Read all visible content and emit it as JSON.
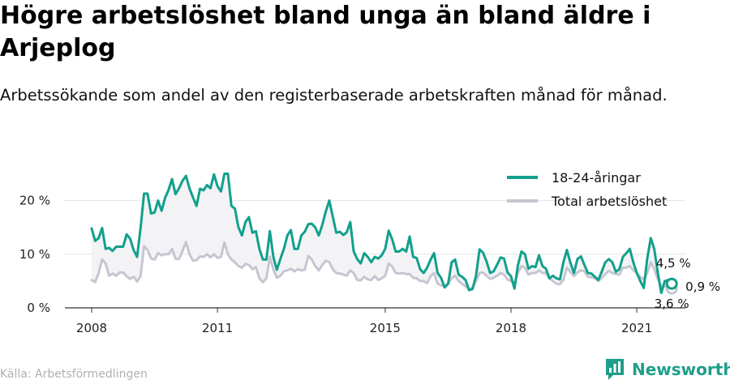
{
  "header": {
    "title": "Högre arbetslöshet bland unga än bland äldre i Arjeplog",
    "subtitle": "Arbetssökande som andel av den registerbaserade arbetskraften månad för månad."
  },
  "footer": {
    "source": "Källa: Arbetsförmedlingen",
    "brand": "Newsworthy",
    "brand_icon": "bar-chart-logo-icon"
  },
  "colors": {
    "youth": "#12a08c",
    "total": "#c6c6d2",
    "grid": "#e3e3e3",
    "fill": "#f3f3f6"
  },
  "chart_data": {
    "type": "line",
    "x_ticks": [
      {
        "year": 2008,
        "label": "2008"
      },
      {
        "year": 2011,
        "label": "2011"
      },
      {
        "year": 2015,
        "label": "2015"
      },
      {
        "year": 2018,
        "label": "2018"
      },
      {
        "year": 2021,
        "label": "2021"
      }
    ],
    "y_ticks": [
      {
        "value": 0,
        "label": "0 %"
      },
      {
        "value": 10,
        "label": "10 %"
      },
      {
        "value": 20,
        "label": "20 %"
      }
    ],
    "ylim": [
      0,
      25
    ],
    "xlim": [
      2008,
      2022
    ],
    "grid": true,
    "legend_position": "top-right",
    "series": [
      {
        "name": "18-24-åringar",
        "color": "#12a08c",
        "start": "2008-01",
        "values": [
          14.8,
          12.5,
          13.0,
          14.9,
          11.0,
          11.2,
          10.6,
          11.4,
          11.4,
          11.4,
          13.7,
          12.9,
          10.8,
          9.5,
          14.9,
          21.3,
          21.3,
          17.6,
          17.8,
          20.0,
          18.1,
          20.5,
          22.0,
          24.0,
          21.2,
          22.3,
          23.7,
          24.6,
          22.3,
          20.6,
          19.0,
          22.2,
          21.9,
          22.9,
          22.3,
          24.9,
          22.7,
          21.7,
          25.0,
          25.0,
          19.0,
          18.5,
          15.0,
          13.5,
          16.0,
          16.9,
          14.0,
          14.3,
          11.0,
          9.0,
          9.0,
          14.3,
          9.5,
          7.1,
          9.1,
          11.0,
          13.5,
          14.5,
          11.0,
          11.0,
          13.5,
          14.2,
          15.6,
          15.7,
          15.0,
          13.5,
          15.5,
          18.0,
          20.0,
          17.0,
          14.0,
          14.2,
          13.6,
          14.1,
          16.0,
          10.5,
          9.1,
          8.3,
          10.2,
          9.5,
          8.5,
          9.5,
          9.2,
          9.8,
          11.0,
          14.4,
          12.8,
          10.5,
          10.5,
          11.0,
          10.5,
          13.3,
          9.5,
          9.3,
          7.2,
          6.5,
          7.5,
          9.0,
          10.2,
          6.5,
          5.6,
          3.8,
          4.5,
          8.5,
          9.0,
          6.2,
          5.8,
          5.2,
          3.3,
          3.5,
          6.0,
          10.9,
          10.3,
          8.7,
          6.5,
          6.8,
          8.0,
          9.4,
          9.2,
          6.6,
          5.9,
          3.6,
          8.0,
          10.5,
          10.0,
          7.3,
          7.8,
          7.6,
          9.8,
          7.8,
          7.3,
          5.5,
          6.0,
          5.5,
          5.3,
          8.5,
          10.8,
          8.4,
          6.5,
          9.1,
          9.6,
          8.0,
          6.5,
          6.4,
          5.8,
          5.2,
          6.8,
          8.5,
          9.1,
          8.5,
          6.7,
          7.2,
          9.5,
          10.2,
          11.0,
          8.5,
          6.5,
          5.0,
          3.7,
          9.2,
          13.0,
          11.0,
          6.5,
          2.8,
          5.0,
          5.2,
          4.5
        ]
      },
      {
        "name": "Total arbetslöshet",
        "color": "#c6c6d2",
        "start": "2008-01",
        "values": [
          5.2,
          4.8,
          6.5,
          9.0,
          8.3,
          6.0,
          6.4,
          6.0,
          6.6,
          6.6,
          5.9,
          5.4,
          5.8,
          4.9,
          5.9,
          11.5,
          10.8,
          9.2,
          9.0,
          10.2,
          9.8,
          10.0,
          10.0,
          11.0,
          9.2,
          9.1,
          10.6,
          12.3,
          10.0,
          8.8,
          8.9,
          9.6,
          9.5,
          10.0,
          9.4,
          10.0,
          9.3,
          9.5,
          12.2,
          10.0,
          9.0,
          8.5,
          7.8,
          7.5,
          8.2,
          8.0,
          7.2,
          7.6,
          5.5,
          4.8,
          5.5,
          9.5,
          7.2,
          5.6,
          6.0,
          6.8,
          7.0,
          7.3,
          6.8,
          7.2,
          7.0,
          7.1,
          9.7,
          9.0,
          7.8,
          7.0,
          8.0,
          8.8,
          8.5,
          7.2,
          6.5,
          6.4,
          6.2,
          6.0,
          7.0,
          6.5,
          5.2,
          5.1,
          5.8,
          5.3,
          5.2,
          5.9,
          5.2,
          5.5,
          6.0,
          8.3,
          7.7,
          6.5,
          6.4,
          6.5,
          6.3,
          6.3,
          5.6,
          5.5,
          5.0,
          5.0,
          4.6,
          5.9,
          6.5,
          4.5,
          4.2,
          4.0,
          4.5,
          5.5,
          6.0,
          5.0,
          4.5,
          4.0,
          3.5,
          3.8,
          5.0,
          6.5,
          6.6,
          6.0,
          5.4,
          5.6,
          6.0,
          6.5,
          6.2,
          5.3,
          5.0,
          4.5,
          6.5,
          7.8,
          7.5,
          6.2,
          6.5,
          6.5,
          7.0,
          6.5,
          6.5,
          5.5,
          5.0,
          4.5,
          4.4,
          5.2,
          7.5,
          6.7,
          5.9,
          6.6,
          7.0,
          6.8,
          5.8,
          5.7,
          5.5,
          5.0,
          5.6,
          6.3,
          6.9,
          6.5,
          6.3,
          6.2,
          7.5,
          7.5,
          7.8,
          7.0,
          6.5,
          5.8,
          5.3,
          6.5,
          8.5,
          7.2,
          5.4,
          4.0,
          4.0,
          3.8,
          3.6
        ]
      }
    ],
    "end_labels": [
      {
        "series": 0,
        "value": 4.5,
        "text": "4,5 %"
      },
      {
        "series": 1,
        "value": 3.6,
        "text": "3,6 %"
      },
      {
        "diff": 0.9,
        "text": "0,9 %"
      }
    ]
  }
}
